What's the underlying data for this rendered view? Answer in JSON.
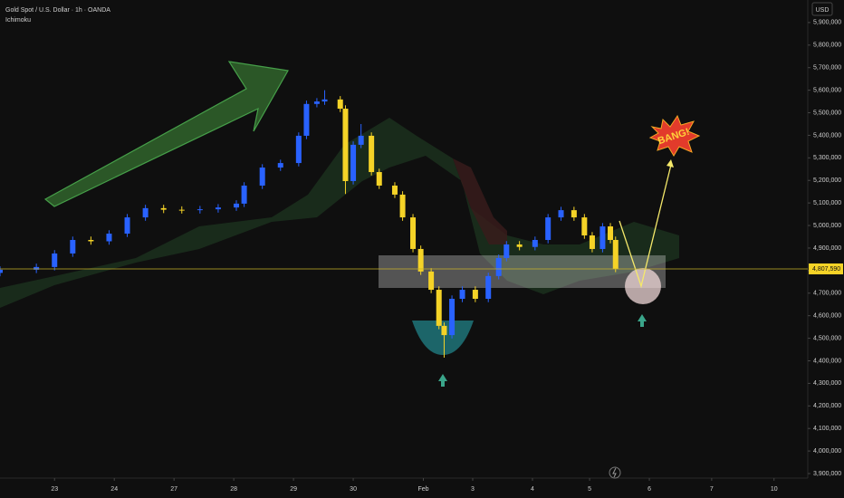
{
  "chart_data": {
    "type": "candlestick",
    "title": "Gold Spot / U.S. Dollar · 1h · OANDA",
    "subtitle": "Ichimoku",
    "y_axis_label": "USD",
    "annotations": [
      "BANG!"
    ],
    "up_color": "#2962ff",
    "down_color": "#f5d327",
    "grid": false,
    "x": [
      0,
      14,
      21,
      28,
      35,
      42,
      49,
      56,
      63,
      70,
      77,
      84,
      91,
      94,
      101,
      108,
      115,
      118,
      122,
      125,
      131,
      133,
      136,
      139,
      143,
      146,
      152,
      155,
      159,
      162,
      166,
      169,
      171,
      174,
      178,
      183,
      188,
      192,
      195,
      200,
      206,
      211,
      216,
      221,
      225,
      228,
      232,
      235,
      237
    ],
    "open": [
      4790000,
      4804000,
      4816000,
      4876000,
      4936000,
      4930000,
      4964000,
      5036000,
      5077000,
      5070000,
      5068000,
      5072000,
      5080000,
      5097000,
      5177000,
      5257000,
      5277000,
      5398000,
      5539000,
      5550000,
      5559000,
      5518000,
      5197000,
      5358000,
      5398000,
      5237000,
      5177000,
      5137000,
      5036000,
      4896000,
      4796000,
      4715000,
      4555000,
      4514000,
      4675000,
      4715000,
      4675000,
      4776000,
      4856000,
      4916000,
      4905000,
      4936000,
      5036000,
      5068000,
      5036000,
      4956000,
      4896000,
      4996000,
      4936000
    ],
    "high": [
      4819000,
      4831000,
      4891000,
      4951000,
      4951000,
      4979000,
      5051000,
      5092000,
      5092000,
      5085000,
      5087000,
      5095000,
      5112000,
      5192000,
      5272000,
      5292000,
      5413000,
      5554000,
      5565000,
      5600000,
      5574000,
      5533000,
      5373000,
      5450000,
      5413000,
      5252000,
      5192000,
      5152000,
      5051000,
      4911000,
      4811000,
      4730000,
      4570000,
      4690000,
      4730000,
      4730000,
      4791000,
      4871000,
      4931000,
      4931000,
      4951000,
      5051000,
      5083000,
      5083000,
      5051000,
      4971000,
      5011000,
      5011000,
      4951000
    ],
    "low": [
      4775000,
      4789000,
      4801000,
      4861000,
      4915000,
      4915000,
      4949000,
      5021000,
      5055000,
      5053000,
      5053000,
      5057000,
      5065000,
      5082000,
      5162000,
      5242000,
      5262000,
      5383000,
      5524000,
      5535000,
      5503000,
      5140000,
      5182000,
      5343000,
      5222000,
      5162000,
      5122000,
      5021000,
      4881000,
      4781000,
      4700000,
      4540000,
      4414000,
      4499000,
      4660000,
      4660000,
      4660000,
      4761000,
      4841000,
      4890000,
      4890000,
      4921000,
      5021000,
      5021000,
      4941000,
      4881000,
      4881000,
      4921000,
      4793000
    ],
    "close": [
      4804000,
      4816000,
      4876000,
      4936000,
      4930000,
      4964000,
      5036000,
      5077000,
      5070000,
      5068000,
      5072000,
      5080000,
      5097000,
      5177000,
      5257000,
      5277000,
      5398000,
      5539000,
      5550000,
      5559000,
      5518000,
      5197000,
      5358000,
      5398000,
      5237000,
      5177000,
      5137000,
      5036000,
      4896000,
      4796000,
      4715000,
      4555000,
      4514000,
      4675000,
      4715000,
      4675000,
      4776000,
      4856000,
      4916000,
      4905000,
      4936000,
      5036000,
      5068000,
      5036000,
      4956000,
      4896000,
      4996000,
      4936000,
      4807590
    ],
    "last_price": {
      "value": 4807590,
      "label": "4,807,590"
    },
    "xlim": [
      0,
      311
    ],
    "xticks": [
      {
        "value": 21,
        "label": "23"
      },
      {
        "value": 44,
        "label": "24"
      },
      {
        "value": 67,
        "label": "27"
      },
      {
        "value": 90,
        "label": "28"
      },
      {
        "value": 113,
        "label": "29"
      },
      {
        "value": 136,
        "label": "30"
      },
      {
        "value": 163,
        "label": "Feb"
      },
      {
        "value": 182,
        "label": "3"
      },
      {
        "value": 205,
        "label": "4"
      },
      {
        "value": 227,
        "label": "5"
      },
      {
        "value": 250,
        "label": "6"
      },
      {
        "value": 274,
        "label": "7"
      },
      {
        "value": 298,
        "label": "10"
      }
    ],
    "ylim": [
      3880000,
      6000000
    ],
    "yticks": [
      {
        "value": 3900000,
        "label": "3,900,000"
      },
      {
        "value": 4000000,
        "label": "4,000,000"
      },
      {
        "value": 4100000,
        "label": "4,100,000"
      },
      {
        "value": 4200000,
        "label": "4,200,000"
      },
      {
        "value": 4300000,
        "label": "4,300,000"
      },
      {
        "value": 4400000,
        "label": "4,400,000"
      },
      {
        "value": 4500000,
        "label": "4,500,000"
      },
      {
        "value": 4600000,
        "label": "4,600,000"
      },
      {
        "value": 4700000,
        "label": "4,700,000"
      },
      {
        "value": 4800000,
        "label": "4,800,000"
      },
      {
        "value": 4900000,
        "label": "4,900,000"
      },
      {
        "value": 5000000,
        "label": "5,000,000"
      },
      {
        "value": 5100000,
        "label": "5,100,000"
      },
      {
        "value": 5200000,
        "label": "5,200,000"
      },
      {
        "value": 5300000,
        "label": "5,300,000"
      },
      {
        "value": 5400000,
        "label": "5,400,000"
      },
      {
        "value": 5500000,
        "label": "5,500,000"
      },
      {
        "value": 5600000,
        "label": "5,600,000"
      },
      {
        "value": 5700000,
        "label": "5,700,000"
      },
      {
        "value": 5800000,
        "label": "5,800,000"
      },
      {
        "value": 5900000,
        "label": "5,900,000"
      }
    ]
  }
}
